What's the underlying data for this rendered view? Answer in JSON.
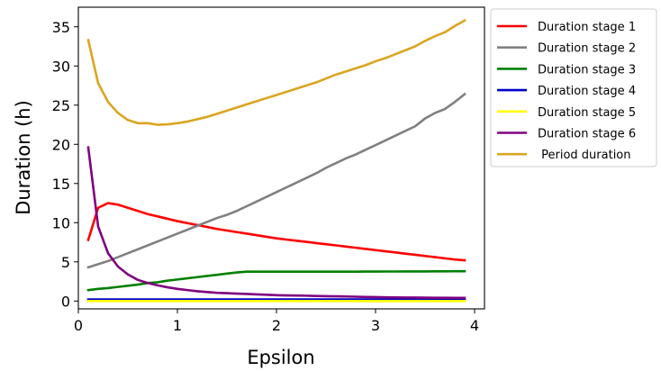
{
  "chart_data": {
    "type": "line",
    "title": "",
    "xlabel": "Epsilon",
    "ylabel": "Duration (h)",
    "xlim": [
      -0.0,
      4.1
    ],
    "ylim": [
      -1.0,
      37.5
    ],
    "xticks": [
      0,
      1,
      2,
      3,
      4
    ],
    "yticks": [
      0,
      5,
      10,
      15,
      20,
      25,
      30,
      35
    ],
    "grid": false,
    "legend_position": "outside-top-right",
    "x": [
      0.1,
      0.2,
      0.3,
      0.4,
      0.5,
      0.6,
      0.7,
      0.8,
      0.9,
      1.0,
      1.1,
      1.2,
      1.3,
      1.4,
      1.5,
      1.6,
      1.7,
      1.8,
      1.9,
      2.0,
      2.1,
      2.2,
      2.3,
      2.4,
      2.5,
      2.6,
      2.7,
      2.8,
      2.9,
      3.0,
      3.1,
      3.2,
      3.3,
      3.4,
      3.5,
      3.6,
      3.7,
      3.8,
      3.9
    ],
    "series": [
      {
        "name": "Duration stage 1",
        "color": "#ff0000",
        "values": [
          7.8,
          11.9,
          12.5,
          12.3,
          11.9,
          11.5,
          11.1,
          10.8,
          10.5,
          10.2,
          9.95,
          9.7,
          9.45,
          9.2,
          9.0,
          8.8,
          8.6,
          8.4,
          8.2,
          8.0,
          7.85,
          7.7,
          7.55,
          7.4,
          7.25,
          7.1,
          6.95,
          6.8,
          6.65,
          6.5,
          6.35,
          6.2,
          6.05,
          5.9,
          5.75,
          5.6,
          5.45,
          5.3,
          5.2
        ]
      },
      {
        "name": "Duration stage 2",
        "color": "#808080",
        "values": [
          4.3,
          4.7,
          5.1,
          5.6,
          6.1,
          6.6,
          7.1,
          7.6,
          8.1,
          8.6,
          9.1,
          9.6,
          10.1,
          10.6,
          11.0,
          11.5,
          12.1,
          12.7,
          13.3,
          13.9,
          14.5,
          15.1,
          15.7,
          16.3,
          17.0,
          17.6,
          18.2,
          18.7,
          19.3,
          19.9,
          20.5,
          21.1,
          21.7,
          22.3,
          23.3,
          24.0,
          24.5,
          25.4,
          26.4
        ]
      },
      {
        "name": "Duration stage 3",
        "color": "#008000",
        "values": [
          1.4,
          1.55,
          1.65,
          1.8,
          1.95,
          2.1,
          2.3,
          2.4,
          2.6,
          2.75,
          2.9,
          3.05,
          3.2,
          3.35,
          3.5,
          3.65,
          3.75,
          3.75,
          3.75,
          3.75,
          3.75,
          3.75,
          3.75,
          3.75,
          3.75,
          3.75,
          3.75,
          3.75,
          3.76,
          3.76,
          3.77,
          3.77,
          3.78,
          3.78,
          3.78,
          3.79,
          3.79,
          3.8,
          3.8
        ]
      },
      {
        "name": "Duration stage 4",
        "color": "#0000cc",
        "values": [
          0.2,
          0.2,
          0.2,
          0.2,
          0.2,
          0.2,
          0.2,
          0.2,
          0.2,
          0.2,
          0.2,
          0.2,
          0.2,
          0.2,
          0.2,
          0.2,
          0.2,
          0.2,
          0.2,
          0.2,
          0.2,
          0.2,
          0.2,
          0.2,
          0.2,
          0.2,
          0.2,
          0.2,
          0.2,
          0.2,
          0.2,
          0.2,
          0.2,
          0.2,
          0.2,
          0.2,
          0.2,
          0.2,
          0.2
        ]
      },
      {
        "name": "Duration stage 5",
        "color": "#ffff00",
        "values": [
          0.0,
          0.0,
          0.0,
          0.0,
          0.0,
          0.0,
          0.0,
          0.0,
          0.0,
          0.0,
          0.0,
          0.0,
          0.0,
          0.0,
          0.0,
          0.0,
          0.0,
          0.0,
          0.0,
          0.0,
          0.0,
          0.0,
          0.0,
          0.0,
          0.0,
          0.0,
          0.0,
          0.0,
          0.0,
          0.0,
          0.0,
          0.0,
          0.0,
          0.0,
          0.0,
          0.0,
          0.0,
          0.0,
          0.0
        ]
      },
      {
        "name": "Duration stage 6",
        "color": "#800080",
        "values": [
          19.6,
          9.5,
          6.1,
          4.4,
          3.4,
          2.7,
          2.3,
          2.0,
          1.75,
          1.55,
          1.4,
          1.25,
          1.15,
          1.05,
          1.0,
          0.95,
          0.9,
          0.85,
          0.8,
          0.75,
          0.72,
          0.7,
          0.68,
          0.65,
          0.62,
          0.6,
          0.58,
          0.55,
          0.52,
          0.5,
          0.48,
          0.46,
          0.45,
          0.44,
          0.43,
          0.42,
          0.41,
          0.4,
          0.4
        ]
      },
      {
        "name": " Period duration",
        "color": "#daa520",
        "values": [
          33.3,
          27.8,
          25.4,
          24.0,
          23.1,
          22.7,
          22.7,
          22.5,
          22.55,
          22.7,
          22.9,
          23.2,
          23.5,
          23.9,
          24.3,
          24.7,
          25.1,
          25.5,
          25.9,
          26.3,
          26.7,
          27.1,
          27.5,
          27.9,
          28.4,
          28.9,
          29.3,
          29.7,
          30.1,
          30.6,
          31.0,
          31.5,
          32.0,
          32.5,
          33.2,
          33.8,
          34.3,
          35.1,
          35.8
        ]
      }
    ]
  }
}
